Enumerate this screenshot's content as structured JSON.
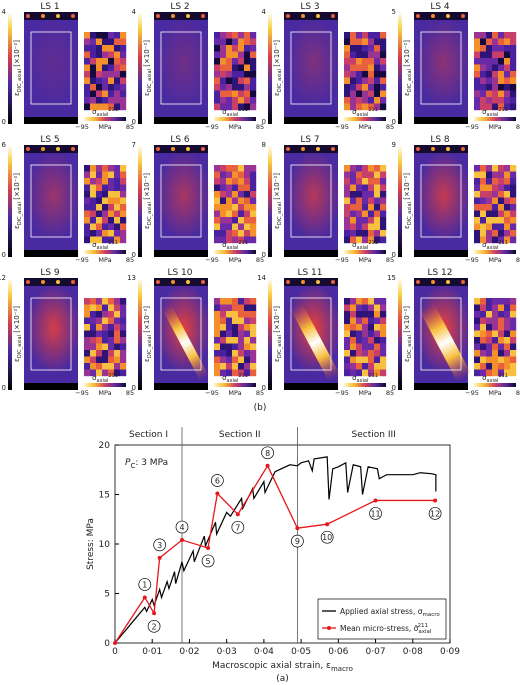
{
  "panels": [
    {
      "title": "LS 1",
      "cbar_ticks": [
        0,
        4
      ]
    },
    {
      "title": "LS 2",
      "cbar_ticks": [
        0,
        4
      ]
    },
    {
      "title": "LS 3",
      "cbar_ticks": [
        0,
        4
      ]
    },
    {
      "title": "LS 4",
      "cbar_ticks": [
        0,
        5
      ]
    },
    {
      "title": "LS 5",
      "cbar_ticks": [
        0,
        6
      ]
    },
    {
      "title": "LS 6",
      "cbar_ticks": [
        0,
        7
      ]
    },
    {
      "title": "LS 7",
      "cbar_ticks": [
        0,
        8
      ]
    },
    {
      "title": "LS 8",
      "cbar_ticks": [
        0,
        9
      ]
    },
    {
      "title": "LS 9",
      "cbar_ticks": [
        0,
        12
      ]
    },
    {
      "title": "LS 10",
      "cbar_ticks": [
        0,
        13
      ]
    },
    {
      "title": "LS 11",
      "cbar_ticks": [
        0,
        14
      ]
    },
    {
      "title": "LS 12",
      "cbar_ticks": [
        0,
        15
      ]
    }
  ],
  "strain_label": "ε",
  "strain_label_sub": "DIC_axial",
  "strain_label_unit": " [×10⁻²]",
  "micro_label": "σ",
  "micro_label_sup": "211",
  "micro_label_sub": "axial",
  "micro_cbar_ticks": [
    {
      "value": -95,
      "label": "−95"
    },
    85
  ],
  "micro_unit": "MPa",
  "caption_b": "(b)",
  "chart_data": {
    "type": "line",
    "caption": "(a)",
    "xlabel": "Macroscopic axial strain, ε",
    "xlabel_sub": "macro",
    "ylabel": "Stress: MPa",
    "xlim": [
      0,
      0.09
    ],
    "ylim": [
      0,
      20
    ],
    "xticks": [
      0,
      {
        "value": 0.01,
        "label": "0·01"
      },
      {
        "value": 0.02,
        "label": "0·02"
      },
      {
        "value": 0.03,
        "label": "0·03"
      },
      {
        "value": 0.04,
        "label": "0·04"
      },
      {
        "value": 0.05,
        "label": "0·05"
      },
      {
        "value": 0.06,
        "label": "0·06"
      },
      {
        "value": 0.07,
        "label": "0·07"
      },
      {
        "value": 0.08,
        "label": "0·08"
      },
      {
        "value": 0.09,
        "label": "0·09"
      }
    ],
    "yticks": [
      0,
      5,
      10,
      15,
      20
    ],
    "section_lines": [
      0.018,
      0.049
    ],
    "sections": [
      "Section I",
      "Section II",
      "Section III"
    ],
    "annotation": "P",
    "annotation_sub": "C",
    "annotation_rest": ": 3 MPa",
    "legend": "lower right",
    "series": [
      {
        "name": "Applied axial stress, σ",
        "name_sub": "macro",
        "color": "#000000",
        "x": [
          0,
          0.004,
          0.008,
          0.0085,
          0.01,
          0.0105,
          0.012,
          0.0125,
          0.014,
          0.0145,
          0.016,
          0.0163,
          0.018,
          0.0185,
          0.021,
          0.0213,
          0.024,
          0.0243,
          0.027,
          0.0273,
          0.03,
          0.031,
          0.034,
          0.0343,
          0.037,
          0.0373,
          0.04,
          0.0403,
          0.043,
          0.047,
          0.049,
          0.05,
          0.052,
          0.053,
          0.0535,
          0.057,
          0.0575,
          0.0585,
          0.06,
          0.062,
          0.0625,
          0.064,
          0.066,
          0.0665,
          0.068,
          0.0705,
          0.071,
          0.073,
          0.08,
          0.082,
          0.085,
          0.0862,
          0.0862
        ],
        "values": [
          0,
          1.8,
          3.6,
          3.2,
          4.4,
          3.8,
          5.4,
          4.6,
          6.2,
          5.5,
          7.2,
          6.0,
          8.2,
          7.3,
          9.3,
          8.2,
          10.8,
          9.8,
          12.2,
          11.0,
          13.2,
          12.8,
          14.6,
          13.6,
          15.6,
          14.6,
          16.3,
          15.2,
          17.3,
          18.0,
          17.9,
          18.2,
          18.4,
          17.4,
          18.6,
          18.8,
          14.5,
          17.6,
          17.8,
          18.2,
          15.2,
          18.0,
          17.8,
          15.0,
          17.8,
          17.6,
          16.6,
          17.0,
          17.0,
          17.2,
          17.1,
          17.0,
          15.3
        ]
      },
      {
        "name": "Mean micro-stress, σ̄",
        "name_sup": "211",
        "name_sub": "axial",
        "color": "#e8171b",
        "x": [
          0,
          0.008,
          0.0105,
          0.012,
          0.018,
          0.025,
          0.0275,
          0.033,
          0.041,
          0.049,
          0.057,
          0.07,
          0.086
        ],
        "values": [
          0,
          4.6,
          3.0,
          8.6,
          10.4,
          9.6,
          15.1,
          13.0,
          17.9,
          11.6,
          12.0,
          14.4,
          14.4
        ],
        "point_labels": [
          null,
          "1",
          "2",
          "3",
          "4",
          "5",
          "6",
          "7",
          "8",
          "9",
          "10",
          "11",
          "12"
        ]
      }
    ]
  }
}
